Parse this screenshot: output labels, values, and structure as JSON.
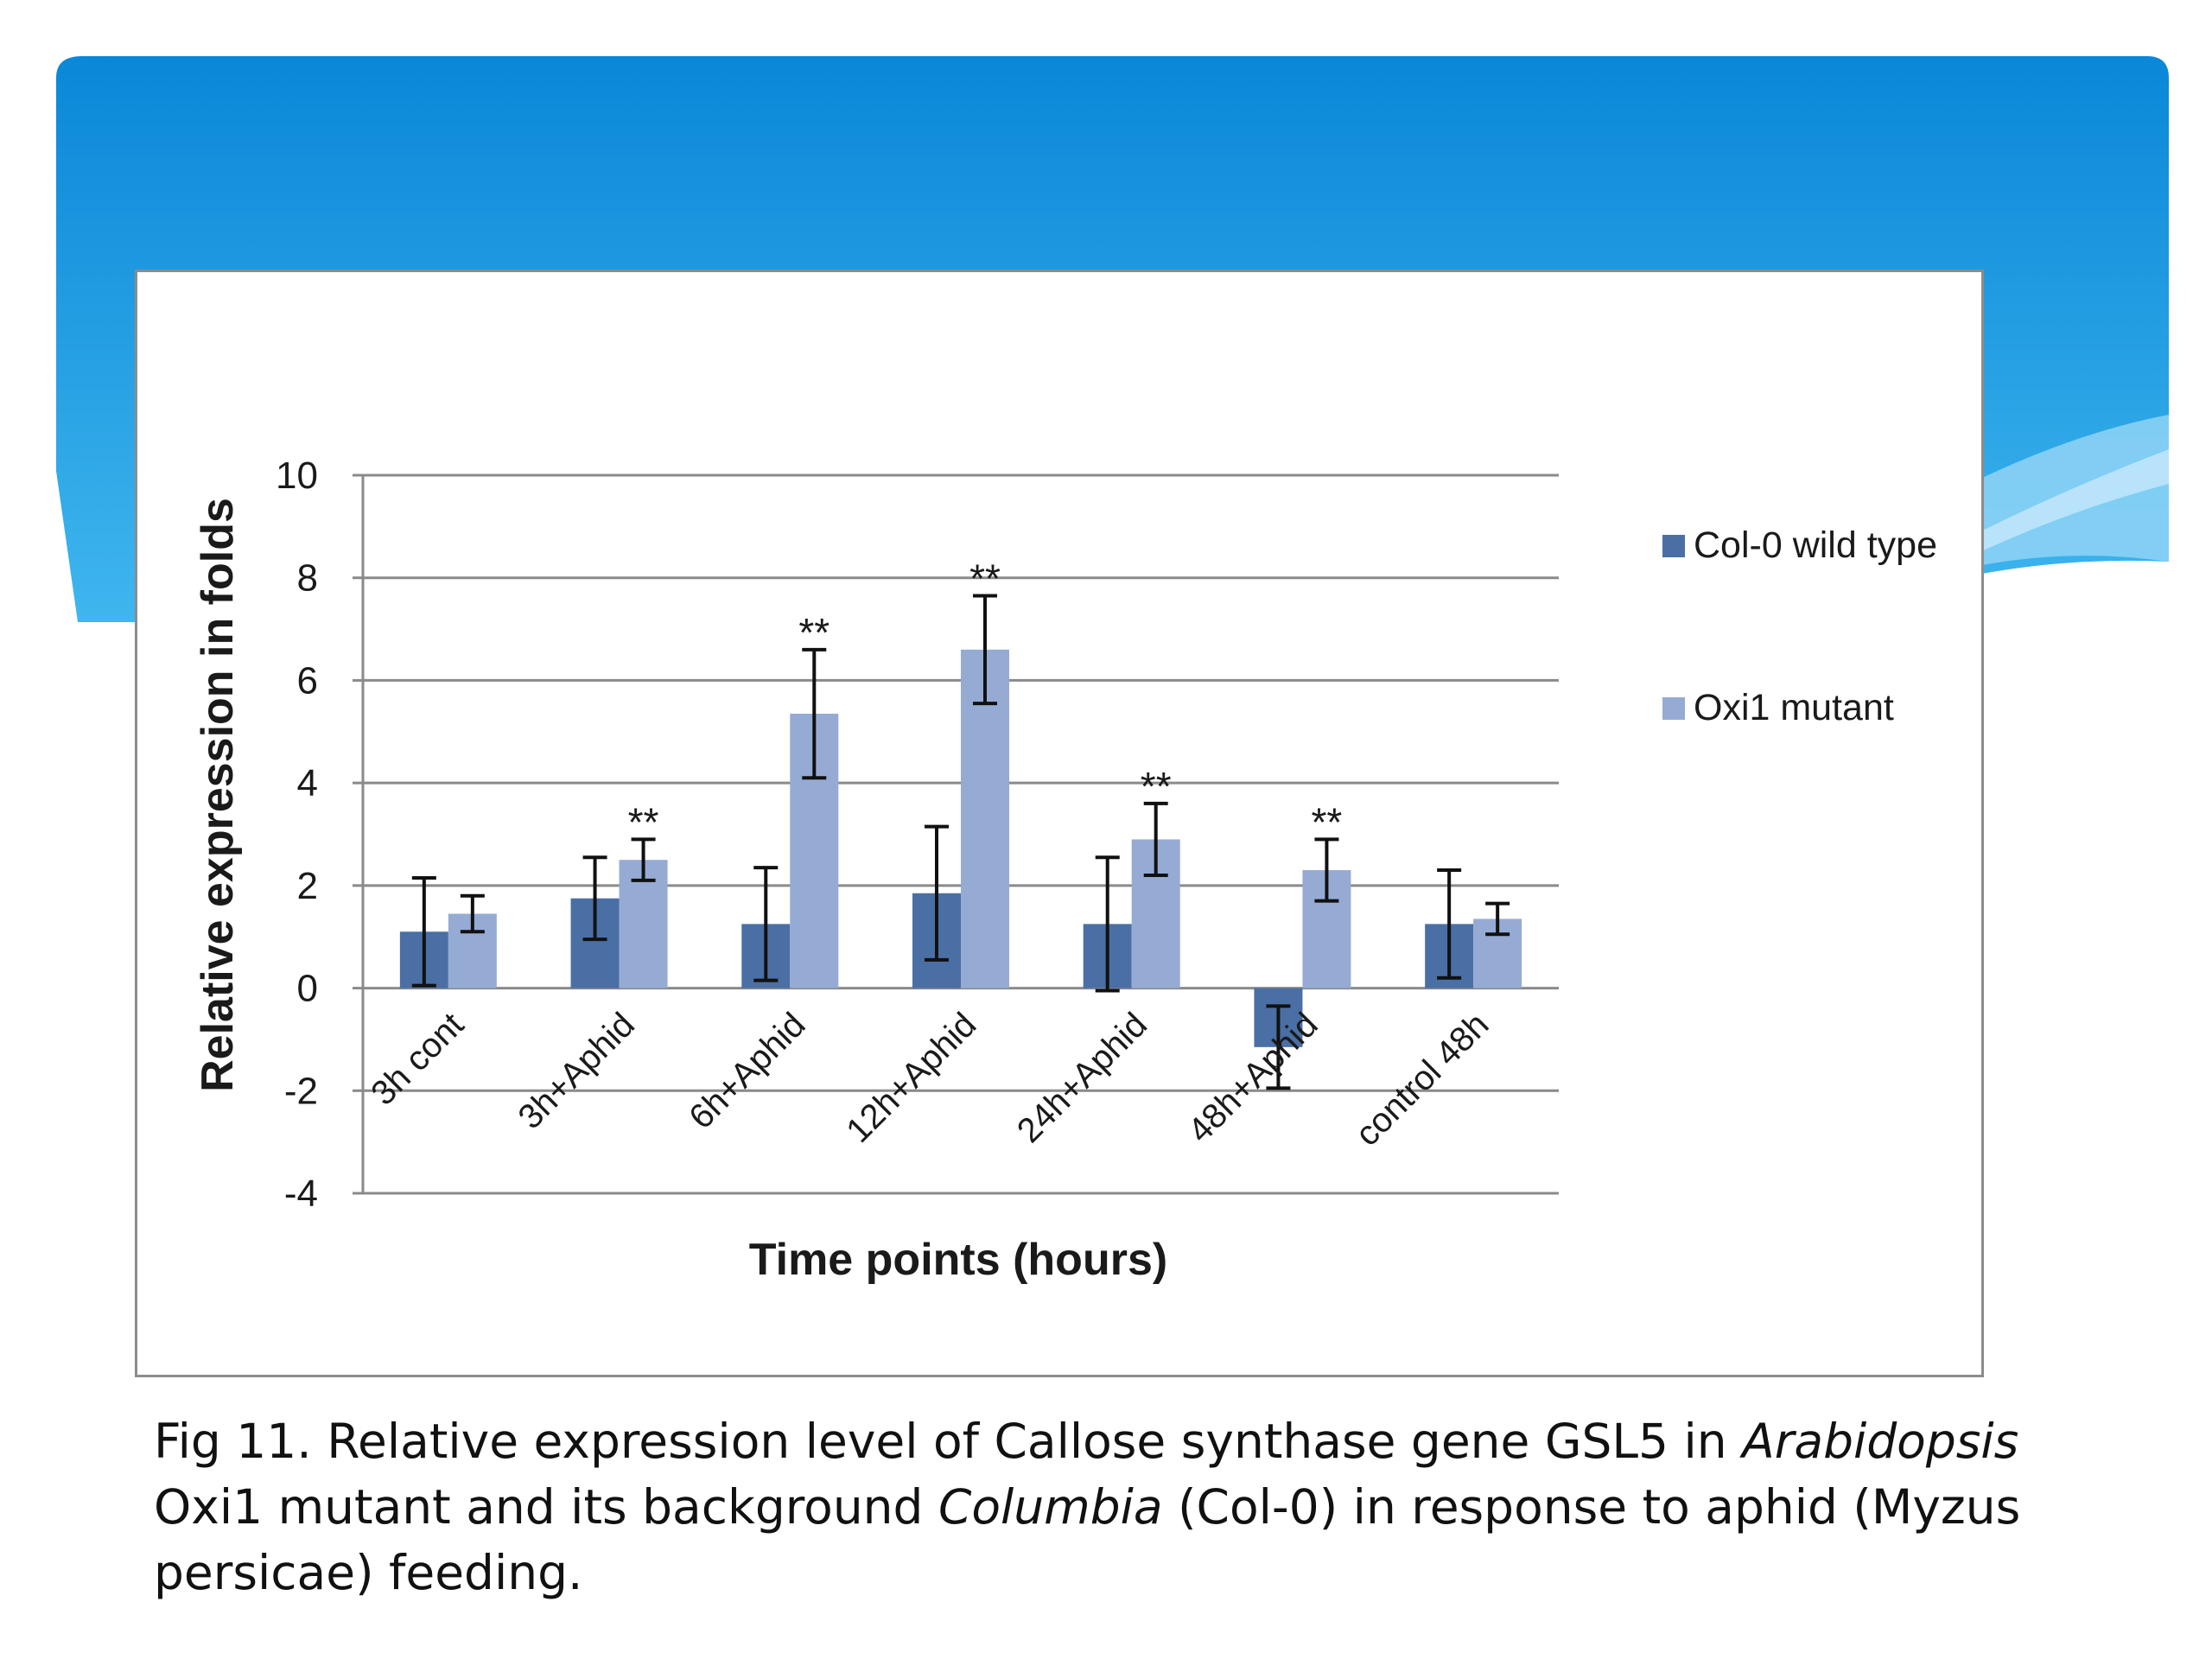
{
  "colors": {
    "col0": "#4a6fa5",
    "oxi1": "#95abd3",
    "banner_light": "#2eb0ec",
    "banner_dark": "#0a87d8"
  },
  "chart_data": {
    "type": "bar",
    "title": "",
    "xlabel": "Time points (hours)",
    "ylabel": "Relative expression in folds",
    "ylim": [
      -4,
      10
    ],
    "yticks": [
      10,
      8,
      6,
      4,
      2,
      0,
      -2,
      -4
    ],
    "yticklabels": [
      "10",
      "8",
      "6",
      "4",
      "2",
      "0",
      "-2",
      "-4"
    ],
    "grid": true,
    "legend_position": "right",
    "categories": [
      "3h  cont",
      "3h+Aphid",
      "6h+Aphid",
      "12h+Aphid",
      "24h+Aphid",
      "48h+Aphid",
      "control 48h"
    ],
    "series": [
      {
        "name": "Col-0 wild type",
        "values": [
          1.1,
          1.75,
          1.25,
          1.85,
          1.25,
          -1.15,
          1.25
        ],
        "errors": [
          1.05,
          0.8,
          1.1,
          1.3,
          1.3,
          0.8,
          1.05
        ]
      },
      {
        "name": "Oxi1 mutant",
        "values": [
          1.45,
          2.5,
          5.35,
          6.6,
          2.9,
          2.3,
          1.35
        ],
        "errors": [
          0.35,
          0.4,
          1.25,
          1.05,
          0.7,
          0.6,
          0.3
        ]
      }
    ],
    "annotations": [
      {
        "category": "3h+Aphid",
        "series": "Oxi1 mutant",
        "text": "**"
      },
      {
        "category": "6h+Aphid",
        "series": "Oxi1 mutant",
        "text": "**"
      },
      {
        "category": "12h+Aphid",
        "series": "Oxi1 mutant",
        "text": "**"
      },
      {
        "category": "24h+Aphid",
        "series": "Oxi1 mutant",
        "text": "**"
      },
      {
        "category": "48h+Aphid",
        "series": "Oxi1 mutant",
        "text": "**"
      }
    ]
  },
  "caption": {
    "part1": "Fig 11. Relative expression level of Callose synthase gene GSL5 in ",
    "italic1": "Arabidopsis",
    "part2": " Oxi1 mutant and its background ",
    "italic2": "Columbia",
    "part3": " (Col-0) in response to aphid (Myzus persicae) feeding."
  }
}
